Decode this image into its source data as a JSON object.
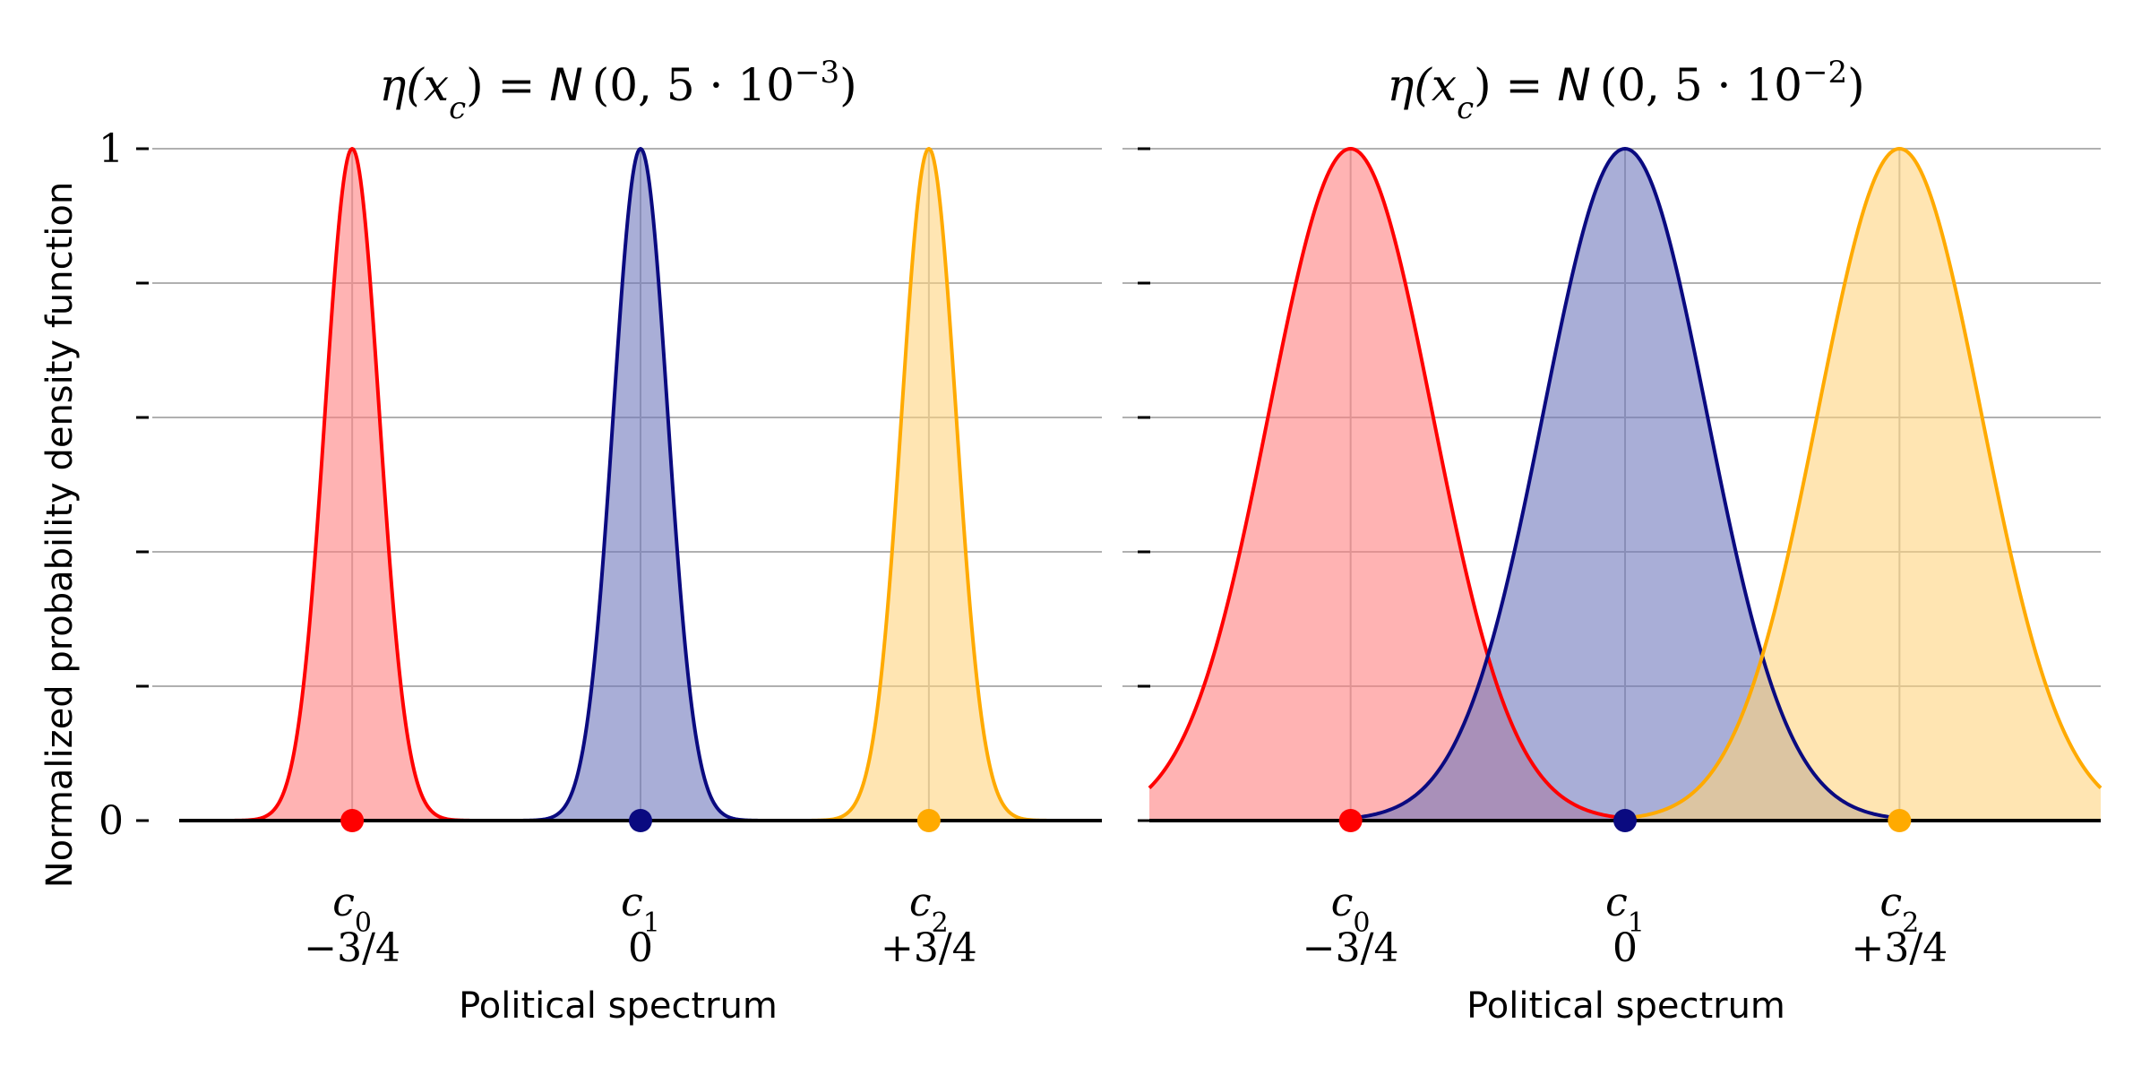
{
  "chart_data": [
    {
      "type": "area",
      "title": {
        "prefix": "η(",
        "var": "x",
        "sub": "c",
        "middle": ") = ",
        "script": "N",
        "args": "(0, 5 · 10",
        "exp": "−3",
        "close": ")"
      },
      "xlabel": "Political spectrum",
      "ylabel": "Normalized probability density function",
      "xlim": [
        -1.2,
        1.2
      ],
      "ylim": [
        0,
        1
      ],
      "grid": true,
      "variance": 0.005,
      "curve_half_width": 0.5,
      "y_ticks": [
        0,
        0.2,
        0.4,
        0.6,
        0.8,
        1
      ],
      "y_tick_labels": [
        "0",
        "",
        "",
        "",
        "",
        "1"
      ],
      "x_ticks": [
        {
          "value": -0.75,
          "name": "c",
          "sub": "0",
          "label": "−3/4"
        },
        {
          "value": 0,
          "name": "c",
          "sub": "1",
          "label": "0"
        },
        {
          "value": 0.75,
          "name": "c",
          "sub": "2",
          "label": "+3/4"
        }
      ],
      "series": [
        {
          "name": "c0",
          "center": -0.75,
          "peak": 1,
          "color": "#ff0000",
          "fill": "#ff8080"
        },
        {
          "name": "c1",
          "center": 0,
          "peak": 1,
          "color": "#0a0a80",
          "fill": "#6f78bd"
        },
        {
          "name": "c2",
          "center": 0.75,
          "peak": 1,
          "color": "#ffaa00",
          "fill": "#ffd47f"
        }
      ]
    },
    {
      "type": "area",
      "title": {
        "prefix": "η(",
        "var": "x",
        "sub": "c",
        "middle": ") = ",
        "script": "N",
        "args": "(0, 5 · 10",
        "exp": "−2",
        "close": ")"
      },
      "xlabel": "Political spectrum",
      "ylabel": "",
      "xlim": [
        -1.3,
        1.3
      ],
      "ylim": [
        0,
        1
      ],
      "grid": true,
      "variance": 0.05,
      "curve_half_width": 0.75,
      "y_ticks": [
        0,
        0.2,
        0.4,
        0.6,
        0.8,
        1
      ],
      "y_tick_labels": [
        "",
        "",
        "",
        "",
        "",
        ""
      ],
      "x_ticks": [
        {
          "value": -0.75,
          "name": "c",
          "sub": "0",
          "label": "−3/4"
        },
        {
          "value": 0,
          "name": "c",
          "sub": "1",
          "label": "0"
        },
        {
          "value": 0.75,
          "name": "c",
          "sub": "2",
          "label": "+3/4"
        }
      ],
      "series": [
        {
          "name": "c0",
          "center": -0.75,
          "peak": 1,
          "color": "#ff0000",
          "fill": "#ff8080"
        },
        {
          "name": "c1",
          "center": 0,
          "peak": 1,
          "color": "#0a0a80",
          "fill": "#6f78bd"
        },
        {
          "name": "c2",
          "center": 0.75,
          "peak": 1,
          "color": "#ffaa00",
          "fill": "#ffd47f"
        }
      ]
    }
  ]
}
